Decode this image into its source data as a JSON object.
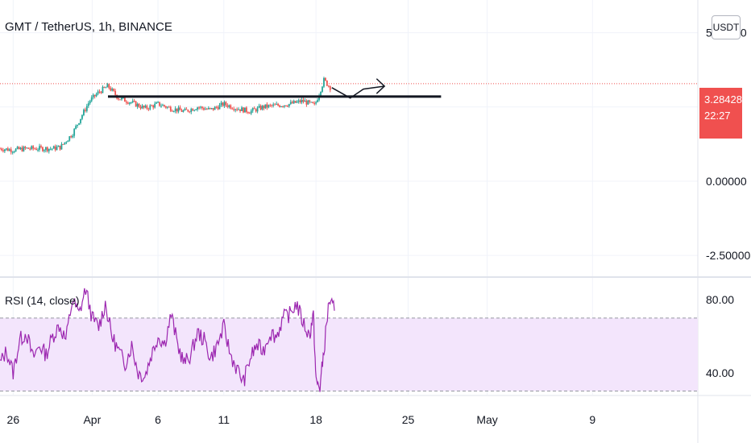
{
  "header": {
    "symbol_title": "GMT / TetherUS, 1h, BINANCE",
    "currency_button": "USDT"
  },
  "price_badge": {
    "price": "3.28428",
    "countdown": "22:27",
    "color": "#f0504f"
  },
  "rsi_panel": {
    "label": "RSI (14, close)",
    "line_color": "#9c27b0",
    "band_fill": "#f3e5fc"
  },
  "colors": {
    "up_candle": "#26a69a",
    "down_candle": "#ef5350",
    "drawing": "#131722",
    "grid": "#f0f3fa",
    "last_price_line": "#f0504f"
  },
  "chart_data": [
    {
      "type": "candlestick",
      "title": "GMT / TetherUS, 1h, BINANCE",
      "y_tick_labels": [
        "5.00000",
        "0.00000",
        "-2.50000"
      ],
      "y_ticks": [
        5,
        0,
        -2.5
      ],
      "ylim": [
        -3.2,
        6.1
      ],
      "x_tick_labels": [
        "26",
        "Apr",
        "6",
        "11",
        "18",
        "25",
        "May",
        "9"
      ],
      "x_ticks_day_index": [
        0,
        6,
        11,
        16,
        23,
        30,
        36,
        44
      ],
      "x_range_days": [
        -1,
        52
      ],
      "close_path": [
        [
          -1,
          1.1
        ],
        [
          0,
          1.05
        ],
        [
          1,
          1.1
        ],
        [
          2,
          1.1
        ],
        [
          3,
          1.1
        ],
        [
          3.6,
          1.15
        ],
        [
          4.5,
          1.6
        ],
        [
          5.2,
          2.2
        ],
        [
          5.8,
          2.7
        ],
        [
          6.5,
          3.0
        ],
        [
          7.2,
          3.2
        ],
        [
          8,
          2.8
        ],
        [
          9,
          2.65
        ],
        [
          10,
          2.45
        ],
        [
          11,
          2.6
        ],
        [
          12,
          2.45
        ],
        [
          13,
          2.35
        ],
        [
          14,
          2.5
        ],
        [
          15,
          2.4
        ],
        [
          16,
          2.6
        ],
        [
          17,
          2.45
        ],
        [
          18,
          2.35
        ],
        [
          19,
          2.5
        ],
        [
          20,
          2.55
        ],
        [
          21,
          2.6
        ],
        [
          22,
          2.7
        ],
        [
          22.9,
          2.55
        ],
        [
          23.2,
          2.9
        ],
        [
          23.6,
          3.4
        ],
        [
          24.1,
          3.15
        ]
      ],
      "last_price": 3.28428,
      "grid": true
    },
    {
      "type": "line",
      "title": "RSI (14, close)",
      "y_tick_labels": [
        "80.00",
        "40.00"
      ],
      "y_ticks": [
        80,
        40
      ],
      "ylim": [
        28,
        92
      ],
      "band": [
        70,
        30
      ],
      "values_path": [
        [
          -1,
          45
        ],
        [
          -0.5,
          52
        ],
        [
          0,
          40
        ],
        [
          0.5,
          58
        ],
        [
          1,
          62
        ],
        [
          1.5,
          48
        ],
        [
          2,
          55
        ],
        [
          2.5,
          50
        ],
        [
          3,
          60
        ],
        [
          3.5,
          66
        ],
        [
          4,
          58
        ],
        [
          4.5,
          80
        ],
        [
          5,
          72
        ],
        [
          5.5,
          86
        ],
        [
          6,
          70
        ],
        [
          6.5,
          65
        ],
        [
          7,
          78
        ],
        [
          7.5,
          60
        ],
        [
          8,
          52
        ],
        [
          8.5,
          45
        ],
        [
          9,
          55
        ],
        [
          9.5,
          40
        ],
        [
          10,
          38
        ],
        [
          10.5,
          50
        ],
        [
          11,
          60
        ],
        [
          11.5,
          56
        ],
        [
          12,
          72
        ],
        [
          12.5,
          55
        ],
        [
          13,
          45
        ],
        [
          13.5,
          50
        ],
        [
          14,
          62
        ],
        [
          14.5,
          58
        ],
        [
          15,
          48
        ],
        [
          15.5,
          55
        ],
        [
          16,
          65
        ],
        [
          16.5,
          50
        ],
        [
          17,
          42
        ],
        [
          17.5,
          35
        ],
        [
          18,
          48
        ],
        [
          18.5,
          55
        ],
        [
          19,
          52
        ],
        [
          19.5,
          62
        ],
        [
          20,
          60
        ],
        [
          20.5,
          70
        ],
        [
          21,
          72
        ],
        [
          21.5,
          78
        ],
        [
          22,
          68
        ],
        [
          22.5,
          60
        ],
        [
          22.8,
          72
        ],
        [
          23,
          35
        ],
        [
          23.3,
          32
        ],
        [
          23.6,
          52
        ],
        [
          24,
          80
        ],
        [
          24.4,
          74
        ]
      ],
      "grid": true
    }
  ]
}
